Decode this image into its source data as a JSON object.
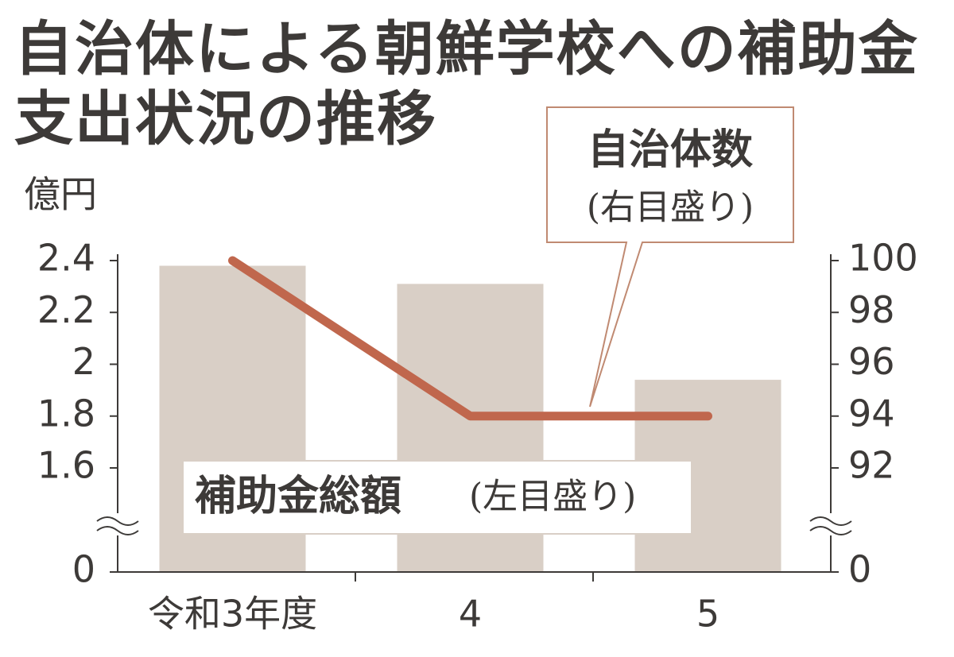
{
  "chart_data": {
    "type": "bar",
    "title": "自治体による朝鮮学校への補助金支出状況の推移",
    "y_label": "億円",
    "categories": [
      "令和3年度",
      "4",
      "5"
    ],
    "series": [
      {
        "name": "補助金総額",
        "type": "bar",
        "color": "#d9cfc6",
        "values": [
          2.38,
          2.31,
          1.94
        ]
      },
      {
        "name": "自治体数",
        "type": "line",
        "color": "#c0674d",
        "axis": "y2",
        "values": [
          100,
          94,
          94
        ]
      }
    ],
    "annotations": [
      "(左目盛り)",
      "(右目盛り)"
    ],
    "ylim": [
      0,
      2.4
    ],
    "yticks": [
      0,
      1.6,
      1.8,
      2,
      2.2,
      2.4
    ],
    "y2lim": [
      0,
      100
    ],
    "y2ticks": [
      0,
      92,
      94,
      96,
      98,
      100
    ],
    "axis_break": true
  }
}
